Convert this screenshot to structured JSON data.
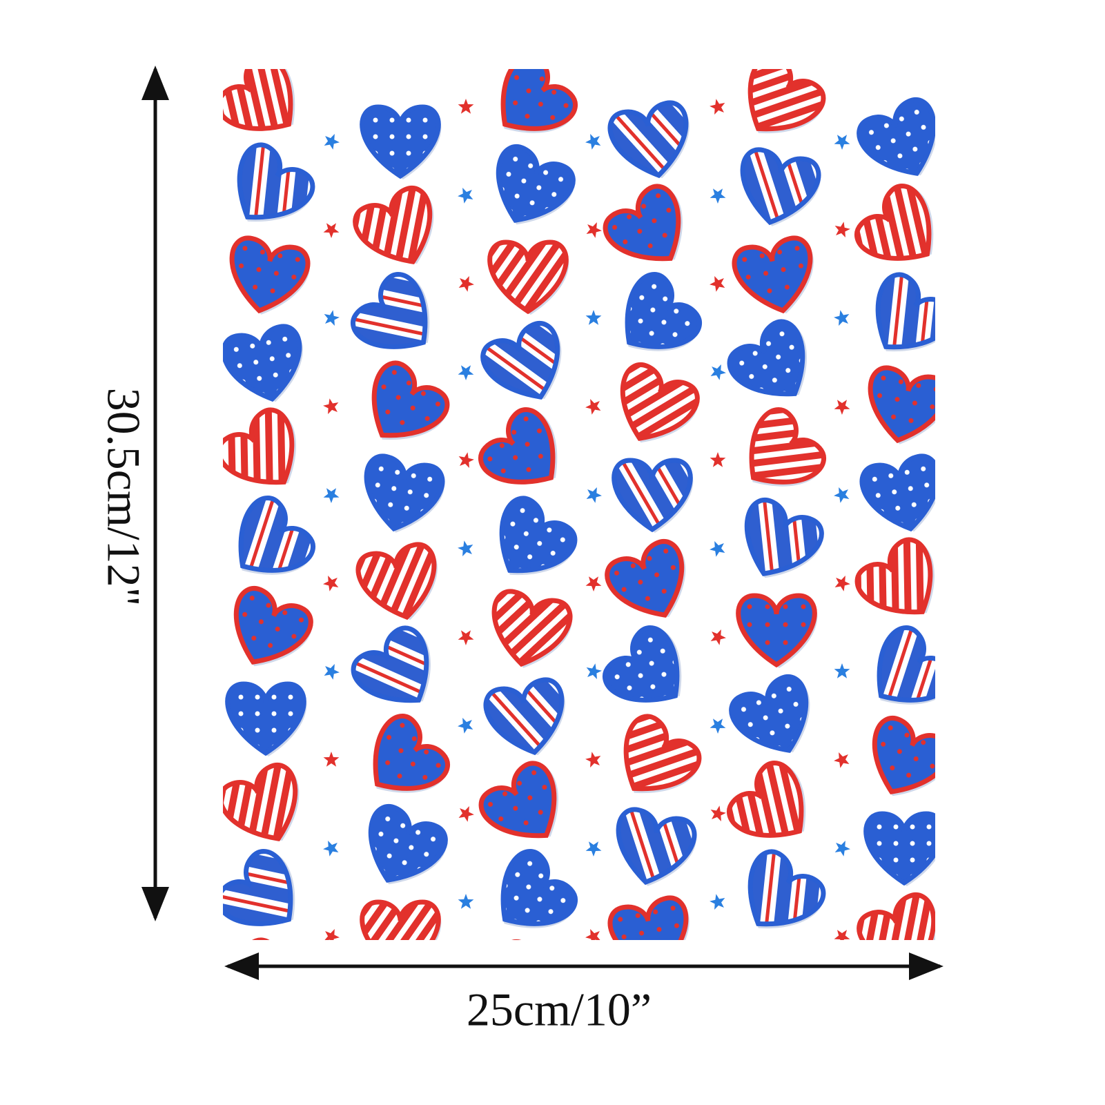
{
  "height_label": "30.5cm/12\"",
  "width_label": "25cm/10”"
}
